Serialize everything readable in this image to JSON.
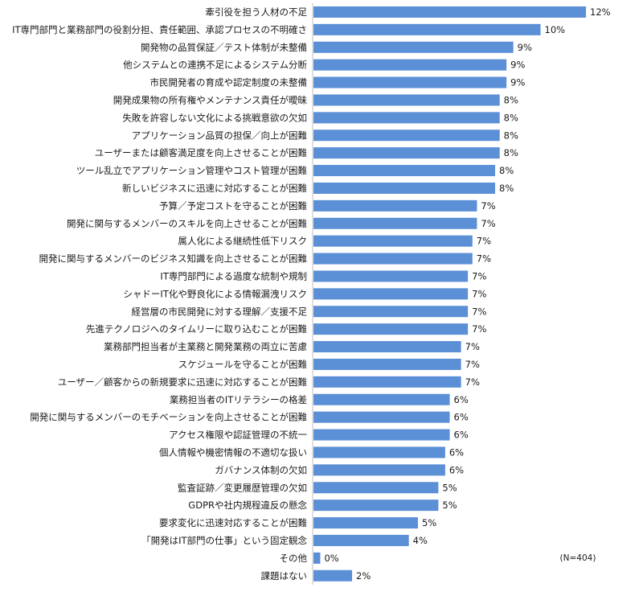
{
  "chart_data": {
    "type": "bar",
    "orientation": "horizontal",
    "categories": [
      "牽引役を担う人材の不足",
      "IT専門部門と業務部門の役割分担、責任範囲、承認プロセスの不明確さ",
      "開発物の品質保証／テスト体制が未整備",
      "他システムとの連携不足によるシステム分断",
      "市民開発者の育成や認定制度の未整備",
      "開発成果物の所有権やメンテナンス責任が曖昧",
      "失敗を許容しない文化による挑戦意欲の欠如",
      "アプリケーション品質の担保／向上が困難",
      "ユーザーまたは顧客満足度を向上させることが困難",
      "ツール乱立でアプリケーション管理やコスト管理が困難",
      "新しいビジネスに迅速に対応することが困難",
      "予算／予定コストを守ることが困難",
      "開発に関与するメンバーのスキルを向上させることが困難",
      "属人化による継続性低下リスク",
      "開発に関与するメンバーのビジネス知識を向上させることが困難",
      "IT専門部門による過度な統制や規制",
      "シャドーIT化や野良化による情報漏洩リスク",
      "経営層の市民開発に対する理解／支援不足",
      "先進テクノロジへのタイムリーに取り込むことが困難",
      "業務部門担当者が主業務と開発業務の両立に苦慮",
      "スケジュールを守ることが困難",
      "ユーザー／顧客からの新規要求に迅速に対応することが困難",
      "業務担当者のITリテラシーの格差",
      "開発に関与するメンバーのモチベーションを向上させることが困難",
      "アクセス権限や認証管理の不統一",
      "個人情報や機密情報の不適切な扱い",
      "ガバナンス体制の欠如",
      "監査証跡／変更履歴管理の欠如",
      "GDPRや社内規程違反の懸念",
      "要求変化に迅速対応することが困難",
      "「開発はIT部門の仕事」という固定観念",
      "その他",
      "課題はない"
    ],
    "values": [
      12.0,
      10.0,
      8.8,
      8.5,
      8.5,
      8.2,
      8.2,
      8.2,
      8.2,
      8.0,
      8.0,
      7.2,
      7.2,
      7.0,
      7.0,
      6.8,
      6.8,
      6.8,
      6.8,
      6.5,
      6.5,
      6.5,
      6.0,
      6.0,
      6.0,
      5.8,
      5.8,
      5.5,
      5.5,
      4.6,
      4.2,
      0.3,
      1.7
    ],
    "value_labels": [
      "12%",
      "10%",
      "9%",
      "9%",
      "9%",
      "8%",
      "8%",
      "8%",
      "8%",
      "8%",
      "8%",
      "7%",
      "7%",
      "7%",
      "7%",
      "7%",
      "7%",
      "7%",
      "7%",
      "7%",
      "7%",
      "7%",
      "6%",
      "6%",
      "6%",
      "6%",
      "6%",
      "5%",
      "5%",
      "5%",
      "4%",
      "0%",
      "2%"
    ],
    "xlim": [
      0,
      12.6
    ],
    "grid": false,
    "legend": "none",
    "note": "(N=404)",
    "bar_color": "#5b8fd6",
    "axis_color": "#bfbfbf"
  }
}
